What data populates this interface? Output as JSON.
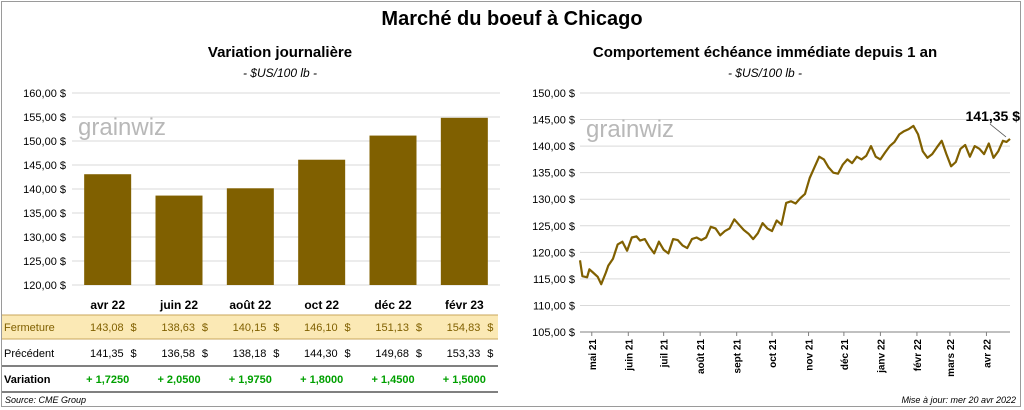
{
  "title": "Marché du boeuf à Chicago",
  "left": {
    "subtitle": "Variation journalière",
    "unit": "- $US/100 lb -",
    "watermark": "grainwiz"
  },
  "right": {
    "subtitle": "Comportement échéance immédiate depuis 1 an",
    "unit": "- $US/100 lb -",
    "watermark": "grainwiz",
    "last_value_label": "141,35 $"
  },
  "table": {
    "rows": [
      {
        "label": "Fermeture",
        "values": [
          "143,08",
          "138,63",
          "140,15",
          "146,10",
          "151,13",
          "154,83"
        ],
        "currency": "$"
      },
      {
        "label": "Précédent",
        "values": [
          "141,35",
          "136,58",
          "138,18",
          "144,30",
          "149,68",
          "153,33"
        ],
        "currency": "$"
      },
      {
        "label": "Variation",
        "values": [
          "+ 1,7250",
          "+ 2,0500",
          "+ 1,9750",
          "+ 1,8000",
          "+ 1,4500",
          "+ 1,5000"
        ],
        "currency": ""
      }
    ]
  },
  "footer": {
    "source": "Source: CME Group",
    "updated": "Mise à jour: mer 20 avr 2022"
  },
  "colors": {
    "bar": "#806000",
    "line": "#806000",
    "close_row_bg": "#fbe9b5",
    "positive": "#00a000",
    "grid": "#d9d9d9"
  },
  "chart_data": [
    {
      "type": "bar",
      "title": "Variation journalière",
      "ylabel": "- $US/100 lb -",
      "categories": [
        "avr 22",
        "juin 22",
        "août 22",
        "oct 22",
        "déc 22",
        "févr 23"
      ],
      "values": [
        143.08,
        138.63,
        140.15,
        146.1,
        151.13,
        154.83
      ],
      "ylim": [
        120,
        160
      ],
      "yticks": [
        120,
        125,
        130,
        135,
        140,
        145,
        150,
        155,
        160
      ],
      "ytick_labels": [
        "120,00 $",
        "125,00 $",
        "130,00 $",
        "135,00 $",
        "140,00 $",
        "145,00 $",
        "150,00 $",
        "155,00 $",
        "160,00 $"
      ],
      "grid": true,
      "legend": "none"
    },
    {
      "type": "line",
      "title": "Comportement échéance immédiate depuis 1 an",
      "ylabel": "- $US/100 lb -",
      "ylim": [
        105,
        150
      ],
      "yticks": [
        105,
        110,
        115,
        120,
        125,
        130,
        135,
        140,
        145,
        150
      ],
      "ytick_labels": [
        "105,00 $",
        "110,00 $",
        "115,00 $",
        "120,00 $",
        "125,00 $",
        "130,00 $",
        "135,00 $",
        "140,00 $",
        "145,00 $",
        "150,00 $"
      ],
      "xticks": [
        "2021-04-30",
        "2021-05-31",
        "2021-06-30",
        "2021-07-31",
        "2021-08-31",
        "2021-09-30",
        "2021-10-31",
        "2021-11-30",
        "2021-12-31",
        "2022-01-31",
        "2022-02-28",
        "2022-03-31"
      ],
      "xtick_labels": [
        "mai 21",
        "juin 21",
        "juil 21",
        "août 21",
        "sept 21",
        "oct 21",
        "nov 21",
        "déc 21",
        "janv 22",
        "févr 22",
        "mars 22",
        "avr 22"
      ],
      "xlim": [
        "2021-04-20",
        "2022-04-20"
      ],
      "grid": true,
      "legend": "none",
      "series": [
        {
          "x": [
            "2021-04-20",
            "2021-04-22",
            "2021-04-26",
            "2021-04-28",
            "2021-05-01",
            "2021-05-05",
            "2021-05-08",
            "2021-05-12",
            "2021-05-14",
            "2021-05-18",
            "2021-05-22",
            "2021-05-26",
            "2021-05-30",
            "2021-06-03",
            "2021-06-07",
            "2021-06-10",
            "2021-06-14",
            "2021-06-18",
            "2021-06-22",
            "2021-06-26",
            "2021-06-30",
            "2021-07-04",
            "2021-07-08",
            "2021-07-12",
            "2021-07-16",
            "2021-07-20",
            "2021-07-24",
            "2021-07-28",
            "2021-08-01",
            "2021-08-05",
            "2021-08-09",
            "2021-08-13",
            "2021-08-17",
            "2021-08-21",
            "2021-08-25",
            "2021-08-29",
            "2021-09-02",
            "2021-09-06",
            "2021-09-10",
            "2021-09-14",
            "2021-09-18",
            "2021-09-22",
            "2021-09-26",
            "2021-09-30",
            "2021-10-04",
            "2021-10-08",
            "2021-10-12",
            "2021-10-16",
            "2021-10-20",
            "2021-10-24",
            "2021-10-28",
            "2021-11-01",
            "2021-11-05",
            "2021-11-09",
            "2021-11-13",
            "2021-11-17",
            "2021-11-21",
            "2021-11-25",
            "2021-11-29",
            "2021-12-03",
            "2021-12-07",
            "2021-12-11",
            "2021-12-15",
            "2021-12-19",
            "2021-12-23",
            "2021-12-27",
            "2021-12-31",
            "2022-01-04",
            "2022-01-08",
            "2022-01-12",
            "2022-01-16",
            "2022-01-20",
            "2022-01-24",
            "2022-01-28",
            "2022-02-01",
            "2022-02-05",
            "2022-02-09",
            "2022-02-13",
            "2022-02-17",
            "2022-02-21",
            "2022-02-25",
            "2022-03-01",
            "2022-03-05",
            "2022-03-09",
            "2022-03-13",
            "2022-03-17",
            "2022-03-21",
            "2022-03-25",
            "2022-03-29",
            "2022-04-02",
            "2022-04-06",
            "2022-04-10",
            "2022-04-14",
            "2022-04-17",
            "2022-04-20"
          ],
          "y": [
            118.5,
            115.5,
            115.3,
            116.8,
            116.2,
            115.4,
            114.0,
            116.2,
            117.5,
            118.8,
            121.5,
            122.0,
            120.3,
            122.8,
            123.0,
            122.2,
            122.5,
            121.0,
            119.8,
            122.0,
            120.5,
            119.8,
            122.5,
            122.3,
            121.3,
            120.8,
            122.5,
            122.8,
            122.3,
            122.8,
            124.8,
            124.5,
            123.2,
            124.0,
            124.5,
            126.2,
            125.2,
            124.2,
            123.5,
            122.5,
            123.6,
            125.5,
            124.5,
            124.0,
            126.0,
            125.2,
            129.3,
            129.6,
            129.2,
            130.2,
            131.0,
            134.0,
            136.0,
            138.0,
            137.5,
            136.0,
            135.0,
            134.8,
            136.5,
            137.5,
            136.8,
            138.0,
            137.5,
            138.2,
            140.0,
            138.0,
            137.5,
            138.8,
            140.0,
            140.8,
            142.2,
            142.8,
            143.2,
            143.8,
            142.2,
            139.0,
            137.8,
            138.5,
            139.8,
            141.0,
            138.5,
            136.2,
            137.0,
            139.5,
            140.2,
            138.0,
            140.0,
            139.5,
            138.5,
            140.5,
            137.8,
            139.0,
            141.0,
            140.8,
            141.35
          ]
        }
      ]
    }
  ]
}
